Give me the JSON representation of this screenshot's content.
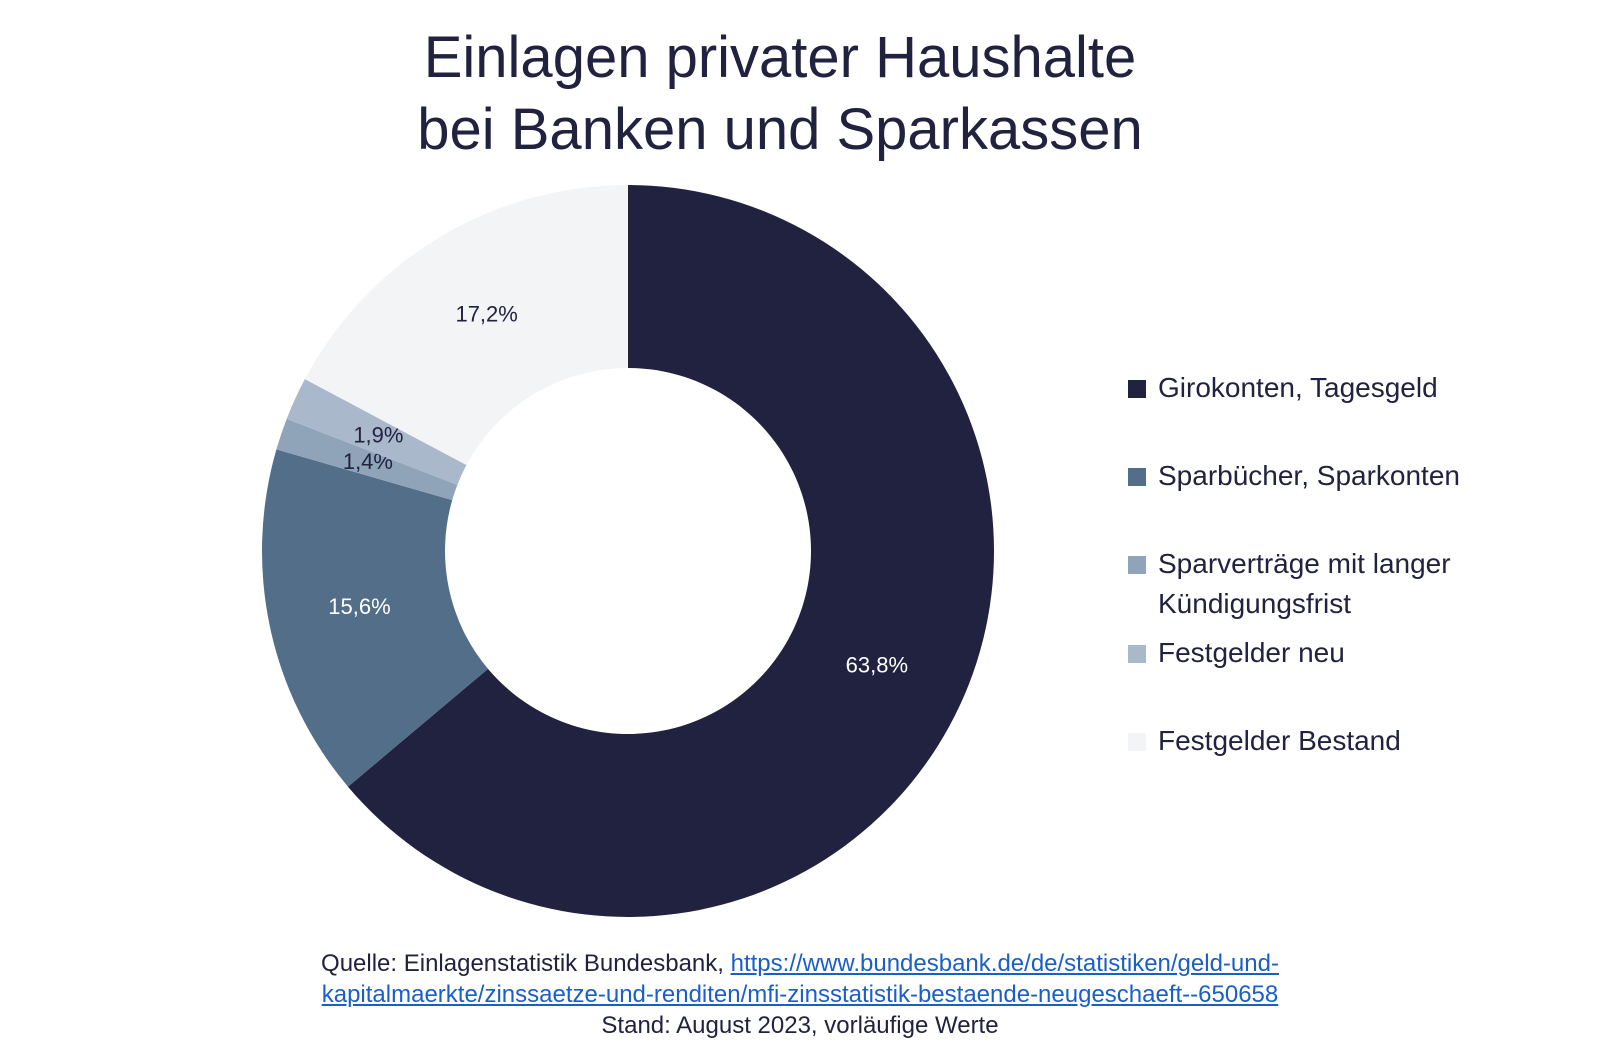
{
  "chart_data": {
    "type": "donut",
    "title": [
      "Einlagen privater Haushalte",
      "bei Banken und Sparkassen"
    ],
    "categories": [
      "Girokonten, Tagesgeld",
      "Sparbücher, Sparkonten",
      "Sparverträge mit langer Kündigungsfrist",
      "Festgelder neu",
      "Festgelder Bestand"
    ],
    "values": [
      63.8,
      15.6,
      1.4,
      1.9,
      17.2
    ],
    "value_labels": [
      "63,8%",
      "15,6%",
      "1,4%",
      "1,9%",
      "17,2%"
    ],
    "colors": [
      "#21223f",
      "#536e89",
      "#8fa3b9",
      "#a9b8cb",
      "#f3f4f6"
    ],
    "legend": "right",
    "source_label": "Quelle: Einlagenstatistik Bundesbank,",
    "source_link": [
      "https://www.bundesbank.de/de/statistiken/geld-und-",
      "kapitalmaerkte/zinssaetze-und-renditen/mfi-zinsstatistik-bestaende-neugeschaeft--650658"
    ],
    "note": "Stand: August 2023, vorläufige Werte"
  }
}
